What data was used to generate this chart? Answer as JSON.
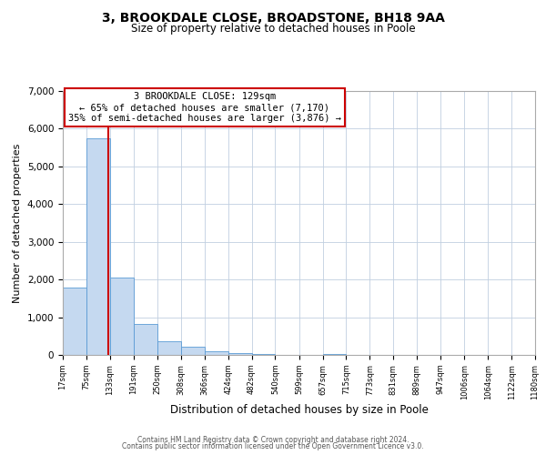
{
  "title_line1": "3, BROOKDALE CLOSE, BROADSTONE, BH18 9AA",
  "title_line2": "Size of property relative to detached houses in Poole",
  "xlabel": "Distribution of detached houses by size in Poole",
  "ylabel": "Number of detached properties",
  "footer_line1": "Contains HM Land Registry data © Crown copyright and database right 2024.",
  "footer_line2": "Contains public sector information licensed under the Open Government Licence v3.0.",
  "annotation_line1": "3 BROOKDALE CLOSE: 129sqm",
  "annotation_line2": "← 65% of detached houses are smaller (7,170)",
  "annotation_line3": "35% of semi-detached houses are larger (3,876) →",
  "property_size": 129,
  "bin_edges": [
    17,
    75,
    133,
    191,
    250,
    308,
    366,
    424,
    482,
    540,
    599,
    657,
    715,
    773,
    831,
    889,
    947,
    1006,
    1064,
    1122,
    1180
  ],
  "bin_counts": [
    1780,
    5750,
    2050,
    820,
    370,
    225,
    105,
    55,
    20,
    10,
    5,
    30,
    0,
    0,
    0,
    0,
    0,
    0,
    0,
    0
  ],
  "bar_color": "#c5d9f0",
  "bar_edge_color": "#5b9bd5",
  "vline_color": "#cc0000",
  "annotation_box_edge_color": "#cc0000",
  "grid_color": "#c0cfe0",
  "background_color": "#ffffff",
  "ylim": [
    0,
    7000
  ],
  "yticks": [
    0,
    1000,
    2000,
    3000,
    4000,
    5000,
    6000,
    7000
  ],
  "title1_fontsize": 10,
  "title2_fontsize": 8.5,
  "ylabel_fontsize": 8,
  "xlabel_fontsize": 8.5,
  "xtick_fontsize": 6,
  "ytick_fontsize": 7.5,
  "annot_fontsize": 7.5,
  "footer_fontsize": 5.5
}
